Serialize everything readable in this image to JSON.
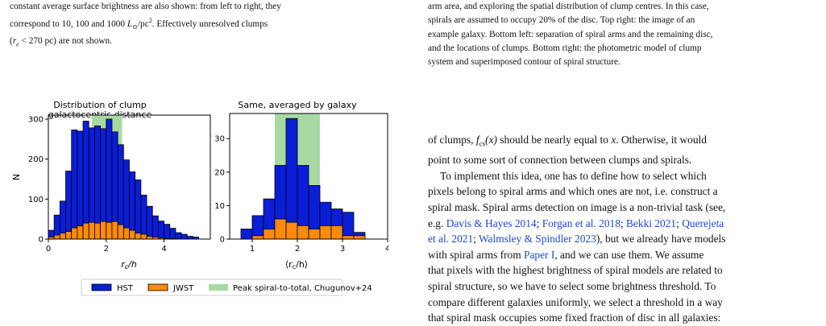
{
  "left_caption": {
    "line1": "constant average surface brightness are also shown: from left to right, they",
    "line2_pre": "correspond to 10, 100 and 1000 ",
    "line2_unit": "L",
    "line2_sub": "⊙",
    "line2_post": "/pc",
    "line2_sup": "2",
    "line2_end": ". Effectively unresolved clumps",
    "line3_pre": "(",
    "line3_var": "r",
    "line3_sub": "e",
    "line3_post": " < 270 pc) are not shown."
  },
  "right_caption": {
    "line1": "arm area, and exploring the spatial distribution of clump centres. In this case,",
    "line2": "spirals are assumed to occupy 20% of the disc. Top right: the image of an",
    "line3": "example galaxy. Bottom left: separation of spiral arms and the remaining disc,",
    "line4": "and the locations of clumps. Bottom right: the photometric model of clump",
    "line5": "system and superimposed contour of spiral structure."
  },
  "body": {
    "l1_pre": "of clumps, ",
    "l1_f": "f",
    "l1_fsub": "cs",
    "l1_x": "(x)",
    "l1_post": " should be nearly equal to ",
    "l1_x2": "x",
    "l1_end": ". Otherwise, it would",
    "l2": "point to some sort of connection between clumps and spirals.",
    "l3": "To implement this idea, one has to define how to select which",
    "l4": "pixels belong to spiral arms and which ones are not, i.e. construct a",
    "l5": "spiral mask. Spiral arms detection on image is a non-trivial task (see,",
    "l6_pre": "e.g. ",
    "l6_r1": "Davis & Hayes 2014",
    "l6_s1": "; ",
    "l6_r2": "Forgan et al. 2018",
    "l6_s2": "; ",
    "l6_r3": "Bekki 2021",
    "l6_s3": "; ",
    "l6_r4": "Querejeta",
    "l7_r4b": "et al. 2021",
    "l7_s1": "; ",
    "l7_r5": "Walmsley & Spindler 2023",
    "l7_post": "), but we already have models",
    "l8_pre": "with spiral arms from ",
    "l8_r": "Paper I",
    "l8_post": ", and we can use them. We assume",
    "l9": "that pixels with the highest brightness of spiral models are related to",
    "l10": "spiral structure, so we have to select some brightness threshold. To",
    "l11": "compare different galaxies uniformly, we select a threshold in a way",
    "l12": "that spiral mask occupies some fixed fraction of disc in all galaxies:"
  },
  "colors": {
    "hst": "#0a1ed8",
    "jwst": "#ff8a0d",
    "peak": "#a8d9a3",
    "text_link": "#1d47d6"
  },
  "chart_data": [
    {
      "type": "bar",
      "title": "Distribution of clump galactocentric distance",
      "title_line1": "Distribution of clump",
      "title_line2": "galactocentric distance",
      "xlabel": "r_c/h",
      "xlabel_main": "r",
      "xlabel_sub": "c",
      "xlabel_post": "/h",
      "ylabel": "N",
      "xlim": [
        0,
        5.6
      ],
      "ylim": [
        0,
        310
      ],
      "xticks": [
        "0",
        "2",
        "4"
      ],
      "xtick_values": [
        0,
        2,
        4
      ],
      "yticks": [
        "0",
        "100",
        "200",
        "300"
      ],
      "ytick_values": [
        0,
        100,
        200,
        300
      ],
      "bin_edges": [
        0,
        0.2,
        0.4,
        0.6,
        0.8,
        1.0,
        1.2,
        1.4,
        1.6,
        1.8,
        2.0,
        2.2,
        2.4,
        2.6,
        2.8,
        3.0,
        3.2,
        3.4,
        3.6,
        3.8,
        4.0,
        4.2,
        4.4,
        4.6,
        4.8,
        5.0,
        5.2
      ],
      "peak_band": [
        1.5,
        2.55
      ],
      "series": [
        {
          "name": "HST",
          "values": [
            22,
            60,
            95,
            170,
            273,
            270,
            295,
            278,
            283,
            276,
            300,
            268,
            236,
            198,
            168,
            148,
            110,
            82,
            58,
            45,
            37,
            27,
            16,
            12,
            7,
            5
          ]
        },
        {
          "name": "JWST",
          "values": [
            5,
            10,
            15,
            19,
            28,
            33,
            40,
            42,
            40,
            44,
            42,
            44,
            36,
            28,
            22,
            15,
            12,
            7,
            5,
            3,
            1,
            1,
            0,
            0,
            0,
            0
          ]
        }
      ]
    },
    {
      "type": "bar",
      "title": "Same, averaged by galaxy",
      "xlabel": "⟨r_c/h⟩",
      "xlabel_main": "⟨r",
      "xlabel_sub": "c",
      "xlabel_post": "/h⟩",
      "xlim": [
        0.5,
        4.0
      ],
      "ylim": [
        0,
        37.5
      ],
      "xticks": [
        "1",
        "2",
        "3",
        "4"
      ],
      "xtick_values": [
        1,
        2,
        3,
        4
      ],
      "yticks": [
        "0",
        "10",
        "20",
        "30"
      ],
      "ytick_values": [
        0,
        10,
        20,
        30
      ],
      "bin_edges": [
        0.75,
        1.0,
        1.25,
        1.5,
        1.75,
        2.0,
        2.25,
        2.5,
        2.75,
        3.0,
        3.25,
        3.5,
        3.75
      ],
      "peak_band": [
        1.5,
        2.5
      ],
      "series": [
        {
          "name": "HST",
          "values": [
            3,
            7,
            12,
            22,
            36,
            22,
            16,
            11,
            9,
            8,
            2,
            0
          ]
        },
        {
          "name": "JWST",
          "values": [
            0,
            1,
            3,
            6,
            5,
            4,
            3,
            4,
            4,
            1,
            1,
            0
          ]
        }
      ]
    }
  ],
  "legend": {
    "hst": "HST",
    "jwst": "JWST",
    "peak": "Peak spiral-to-total, Chugunov+24"
  }
}
